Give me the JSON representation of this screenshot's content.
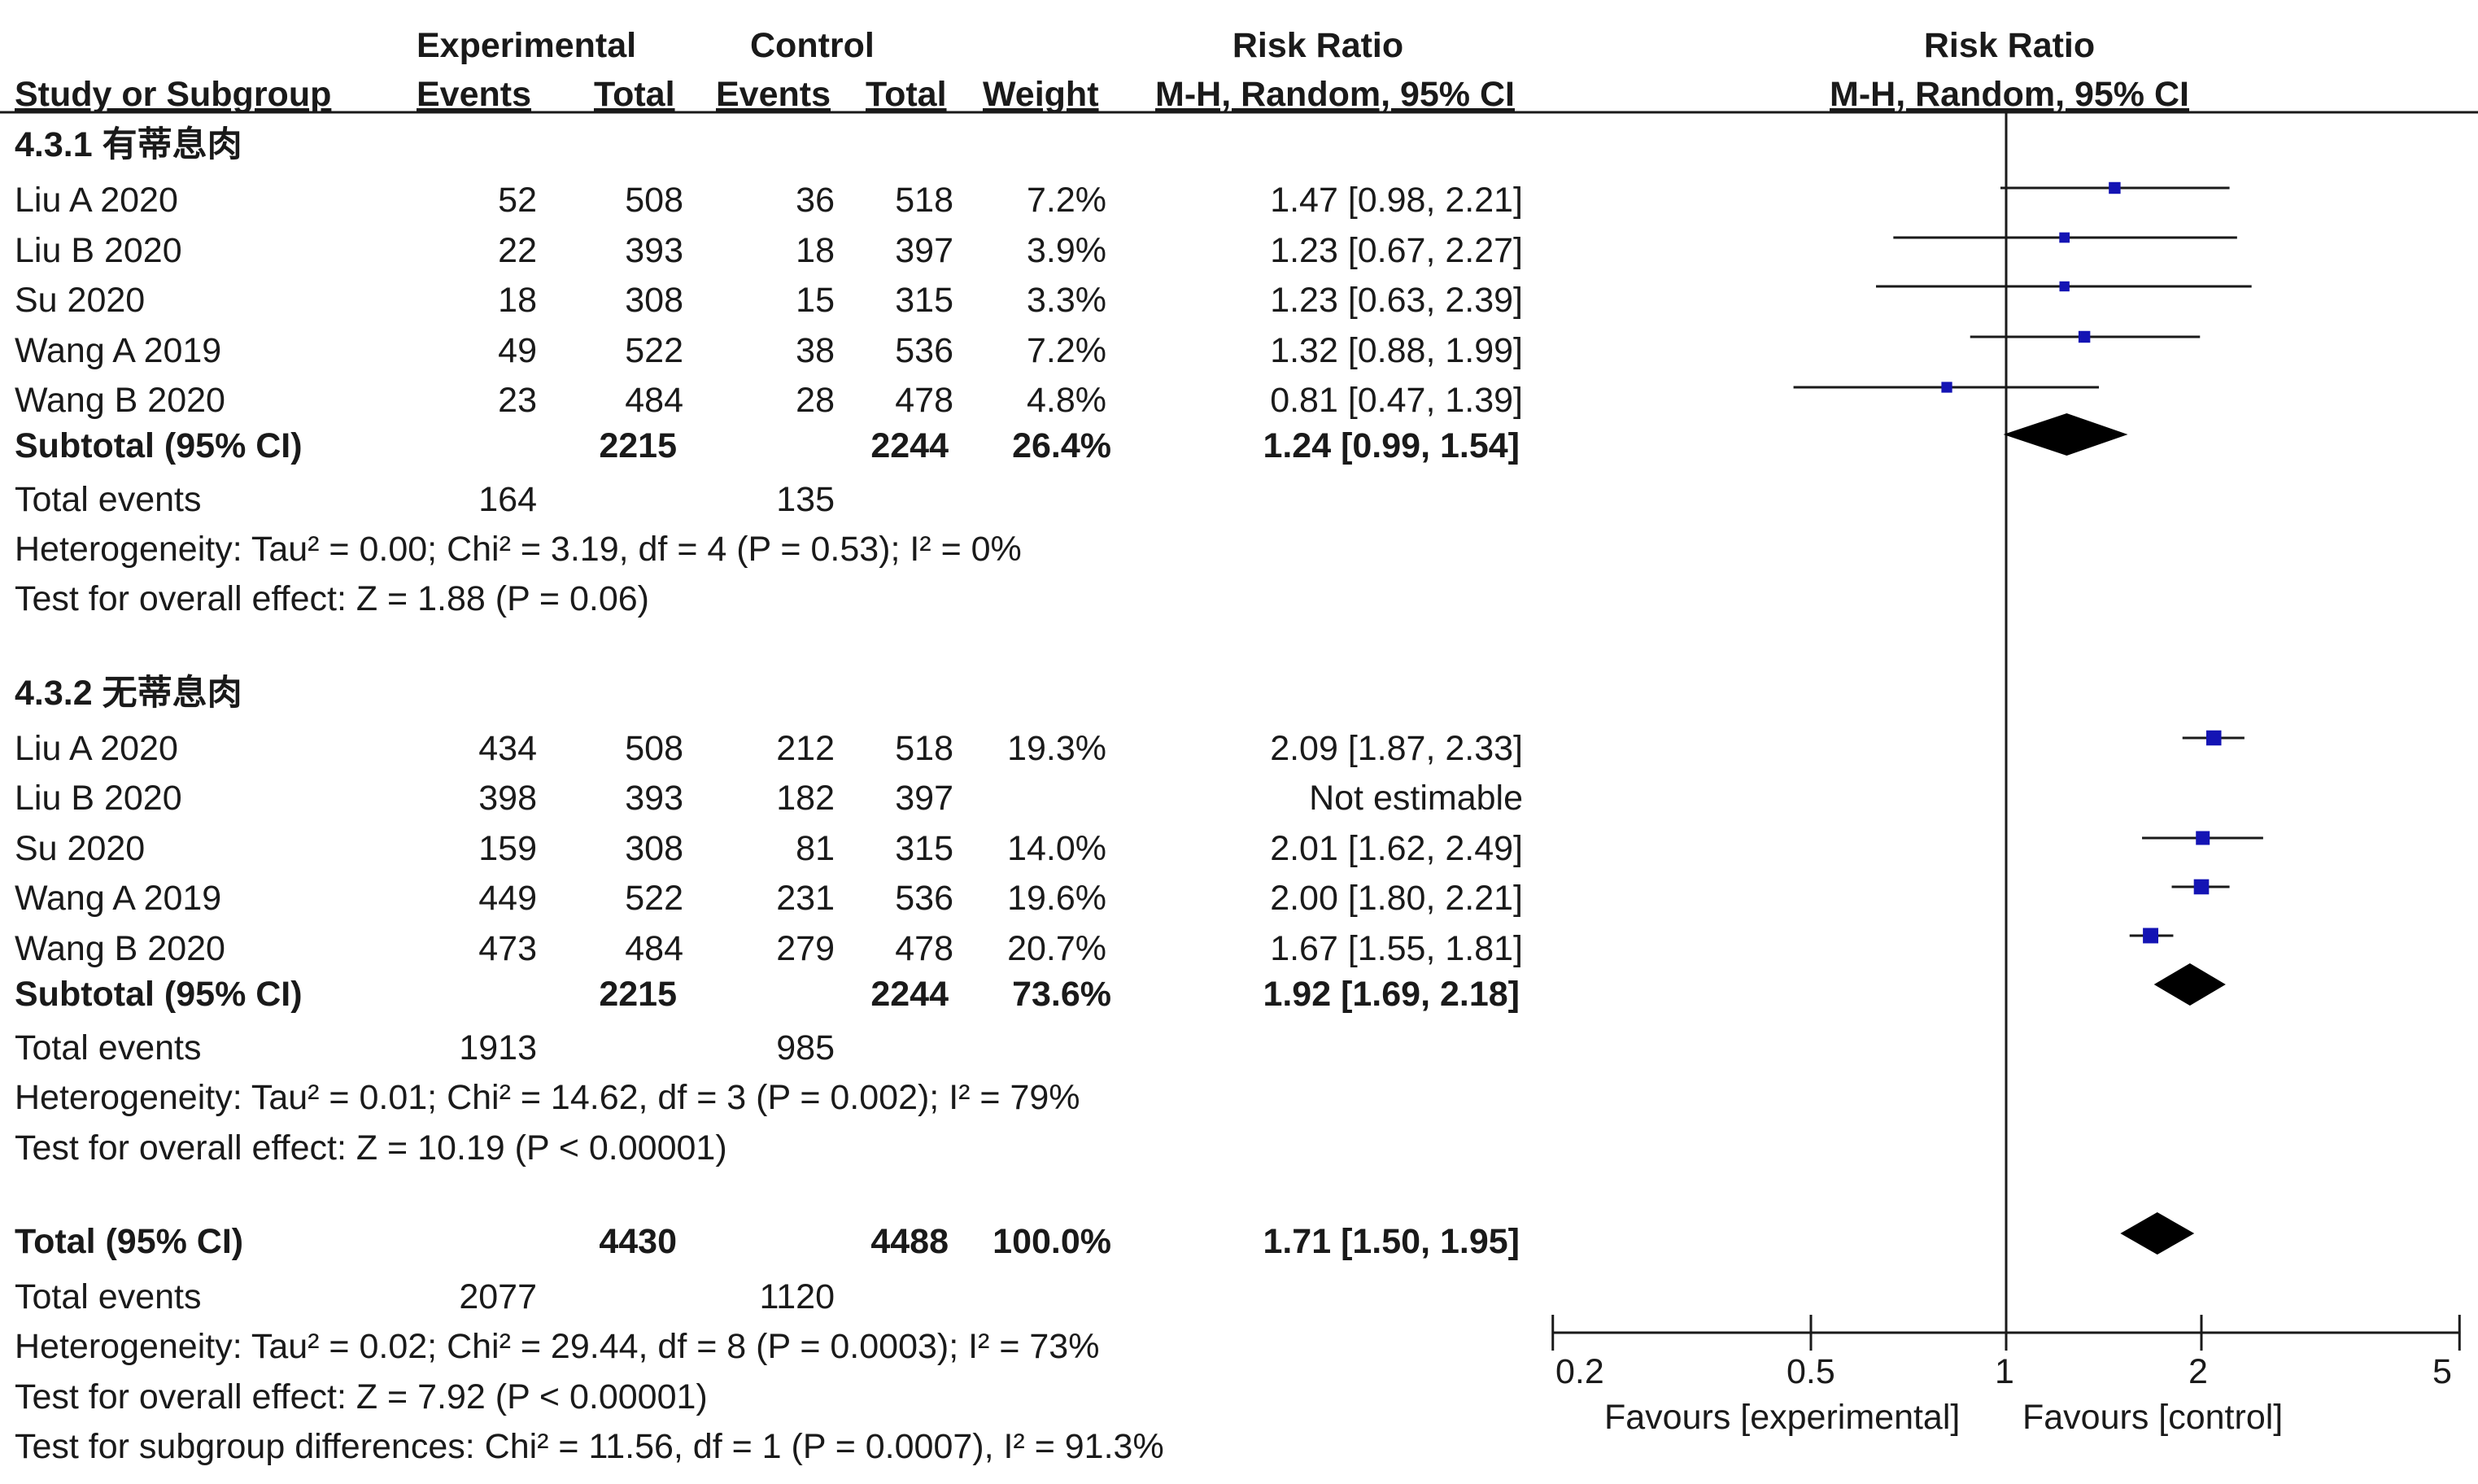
{
  "headers": {
    "experimental": "Experimental",
    "control": "Control",
    "risk_ratio_table": "Risk Ratio",
    "risk_ratio_plot": "Risk Ratio",
    "study": "Study or Subgroup",
    "exp_events": "Events",
    "exp_total": "Total",
    "ctrl_events": "Events",
    "ctrl_total": "Total",
    "weight": "Weight",
    "method_table": "M-H, Random, 95% CI",
    "method_plot": "M-H, Random, 95% CI"
  },
  "subgroup1": {
    "title": "4.3.1 有蒂息肉",
    "rows": [
      {
        "study": "Liu A 2020",
        "ee": "52",
        "et": "508",
        "ce": "36",
        "ct": "518",
        "w": "7.2%",
        "ci": "1.47 [0.98, 2.21]"
      },
      {
        "study": "Liu B 2020",
        "ee": "22",
        "et": "393",
        "ce": "18",
        "ct": "397",
        "w": "3.9%",
        "ci": "1.23 [0.67, 2.27]"
      },
      {
        "study": "Su 2020",
        "ee": "18",
        "et": "308",
        "ce": "15",
        "ct": "315",
        "w": "3.3%",
        "ci": "1.23 [0.63, 2.39]"
      },
      {
        "study": "Wang A 2019",
        "ee": "49",
        "et": "522",
        "ce": "38",
        "ct": "536",
        "w": "7.2%",
        "ci": "1.32 [0.88, 1.99]"
      },
      {
        "study": "Wang B 2020",
        "ee": "23",
        "et": "484",
        "ce": "28",
        "ct": "478",
        "w": "4.8%",
        "ci": "0.81 [0.47, 1.39]"
      }
    ],
    "subtotal": {
      "label": "Subtotal (95% CI)",
      "et": "2215",
      "ct": "2244",
      "w": "26.4%",
      "ci": "1.24 [0.99, 1.54]"
    },
    "total_events": {
      "label": "Total events",
      "e": "164",
      "c": "135"
    },
    "heterogeneity": "Heterogeneity: Tau² = 0.00; Chi² = 3.19, df = 4 (P = 0.53); I² = 0%",
    "overall": "Test for overall effect: Z = 1.88 (P = 0.06)"
  },
  "subgroup2": {
    "title": "4.3.2 无蒂息肉",
    "rows": [
      {
        "study": "Liu A 2020",
        "ee": "434",
        "et": "508",
        "ce": "212",
        "ct": "518",
        "w": "19.3%",
        "ci": "2.09 [1.87, 2.33]"
      },
      {
        "study": "Liu B 2020",
        "ee": "398",
        "et": "393",
        "ce": "182",
        "ct": "397",
        "w": "",
        "ci": "Not estimable"
      },
      {
        "study": "Su 2020",
        "ee": "159",
        "et": "308",
        "ce": "81",
        "ct": "315",
        "w": "14.0%",
        "ci": "2.01 [1.62, 2.49]"
      },
      {
        "study": "Wang A 2019",
        "ee": "449",
        "et": "522",
        "ce": "231",
        "ct": "536",
        "w": "19.6%",
        "ci": "2.00 [1.80, 2.21]"
      },
      {
        "study": "Wang B 2020",
        "ee": "473",
        "et": "484",
        "ce": "279",
        "ct": "478",
        "w": "20.7%",
        "ci": "1.67 [1.55, 1.81]"
      }
    ],
    "subtotal": {
      "label": "Subtotal (95% CI)",
      "et": "2215",
      "ct": "2244",
      "w": "73.6%",
      "ci": "1.92 [1.69, 2.18]"
    },
    "total_events": {
      "label": "Total events",
      "e": "1913",
      "c": "985"
    },
    "heterogeneity": "Heterogeneity: Tau² = 0.01; Chi² = 14.62, df = 3 (P = 0.002); I² = 79%",
    "overall": "Test for overall effect: Z = 10.19 (P < 0.00001)"
  },
  "total": {
    "label": "Total (95% CI)",
    "et": "4430",
    "ct": "4488",
    "w": "100.0%",
    "ci": "1.71 [1.50, 1.95]",
    "events_label": "Total events",
    "e": "2077",
    "c": "1120",
    "heterogeneity": "Heterogeneity: Tau² = 0.02; Chi² = 29.44, df = 8 (P = 0.0003); I² = 73%",
    "overall": "Test for overall effect: Z = 7.92 (P < 0.00001)",
    "subgroup_diff": "Test for subgroup differences: Chi² = 11.56, df = 1 (P = 0.0007), I² = 91.3%"
  },
  "axis": {
    "ticks": [
      "0.2",
      "0.5",
      "1",
      "2",
      "5"
    ],
    "favours_left": "Favours [experimental]",
    "favours_right": "Favours [control]"
  },
  "colors": {
    "marker": "#1414b4",
    "ink": "#1a1a1a",
    "diamond": "#000000"
  },
  "chart_data": {
    "type": "forest",
    "scale": "log",
    "xlim": [
      0.2,
      5
    ],
    "title": "Risk Ratio",
    "subtitle": "M-H, Random, 95% CI",
    "studies": [
      {
        "group": "4.3.1",
        "name": "Liu A 2020",
        "rr": 1.47,
        "lo": 0.98,
        "hi": 2.21,
        "weight": 7.2
      },
      {
        "group": "4.3.1",
        "name": "Liu B 2020",
        "rr": 1.23,
        "lo": 0.67,
        "hi": 2.27,
        "weight": 3.9
      },
      {
        "group": "4.3.1",
        "name": "Su 2020",
        "rr": 1.23,
        "lo": 0.63,
        "hi": 2.39,
        "weight": 3.3
      },
      {
        "group": "4.3.1",
        "name": "Wang A 2019",
        "rr": 1.32,
        "lo": 0.88,
        "hi": 1.99,
        "weight": 7.2
      },
      {
        "group": "4.3.1",
        "name": "Wang B 2020",
        "rr": 0.81,
        "lo": 0.47,
        "hi": 1.39,
        "weight": 4.8
      },
      {
        "group": "4.3.2",
        "name": "Liu A 2020",
        "rr": 2.09,
        "lo": 1.87,
        "hi": 2.33,
        "weight": 19.3
      },
      {
        "group": "4.3.2",
        "name": "Su 2020",
        "rr": 2.01,
        "lo": 1.62,
        "hi": 2.49,
        "weight": 14.0
      },
      {
        "group": "4.3.2",
        "name": "Wang A 2019",
        "rr": 2.0,
        "lo": 1.8,
        "hi": 2.21,
        "weight": 19.6
      },
      {
        "group": "4.3.2",
        "name": "Wang B 2020",
        "rr": 1.67,
        "lo": 1.55,
        "hi": 1.81,
        "weight": 20.7
      }
    ],
    "summaries": [
      {
        "name": "Subtotal 4.3.1",
        "rr": 1.24,
        "lo": 0.99,
        "hi": 1.54
      },
      {
        "name": "Subtotal 4.3.2",
        "rr": 1.92,
        "lo": 1.69,
        "hi": 2.18
      },
      {
        "name": "Total",
        "rr": 1.71,
        "lo": 1.5,
        "hi": 1.95
      }
    ]
  }
}
